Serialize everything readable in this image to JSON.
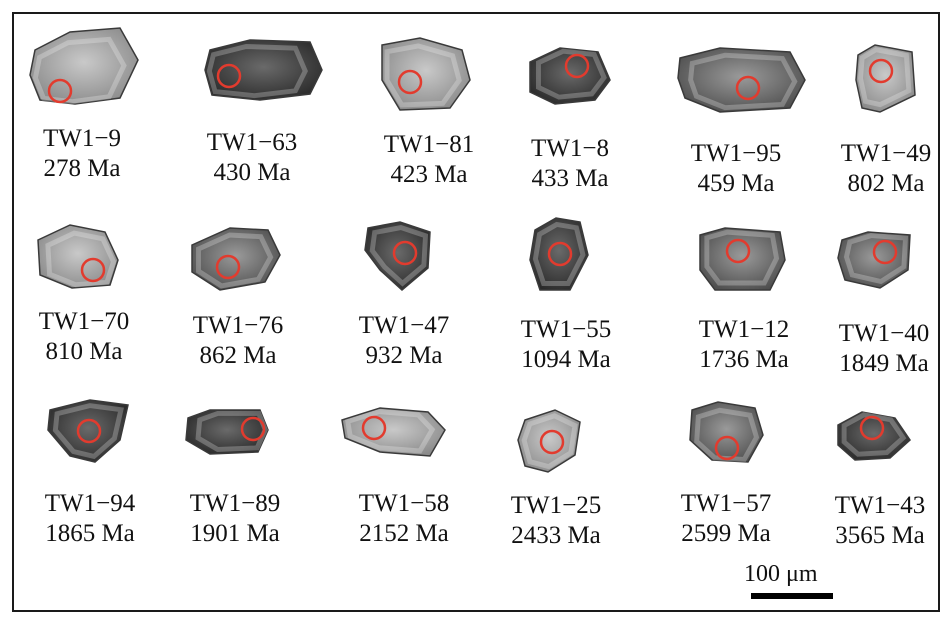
{
  "grains": [
    {
      "id": "TW1−9",
      "age": "278 Ma"
    },
    {
      "id": "TW1−63",
      "age": "430 Ma"
    },
    {
      "id": "TW1−81",
      "age": "423 Ma"
    },
    {
      "id": "TW1−8",
      "age": "433 Ma"
    },
    {
      "id": "TW1−95",
      "age": "459 Ma"
    },
    {
      "id": "TW1−49",
      "age": "802 Ma"
    },
    {
      "id": "TW1−70",
      "age": "810 Ma"
    },
    {
      "id": "TW1−76",
      "age": "862 Ma"
    },
    {
      "id": "TW1−47",
      "age": "932 Ma"
    },
    {
      "id": "TW1−55",
      "age": "1094 Ma"
    },
    {
      "id": "TW1−12",
      "age": "1736 Ma"
    },
    {
      "id": "TW1−40",
      "age": "1849 Ma"
    },
    {
      "id": "TW1−94",
      "age": "1865 Ma"
    },
    {
      "id": "TW1−89",
      "age": "1901 Ma"
    },
    {
      "id": "TW1−58",
      "age": "2152 Ma"
    },
    {
      "id": "TW1−25",
      "age": "2433 Ma"
    },
    {
      "id": "TW1−57",
      "age": "2599 Ma"
    },
    {
      "id": "TW1−43",
      "age": "3565 Ma"
    }
  ],
  "scale_bar": {
    "label": "100 μm"
  },
  "colors": {
    "spot_circle": "#e23b2e",
    "frame": "#1a1a1a"
  }
}
